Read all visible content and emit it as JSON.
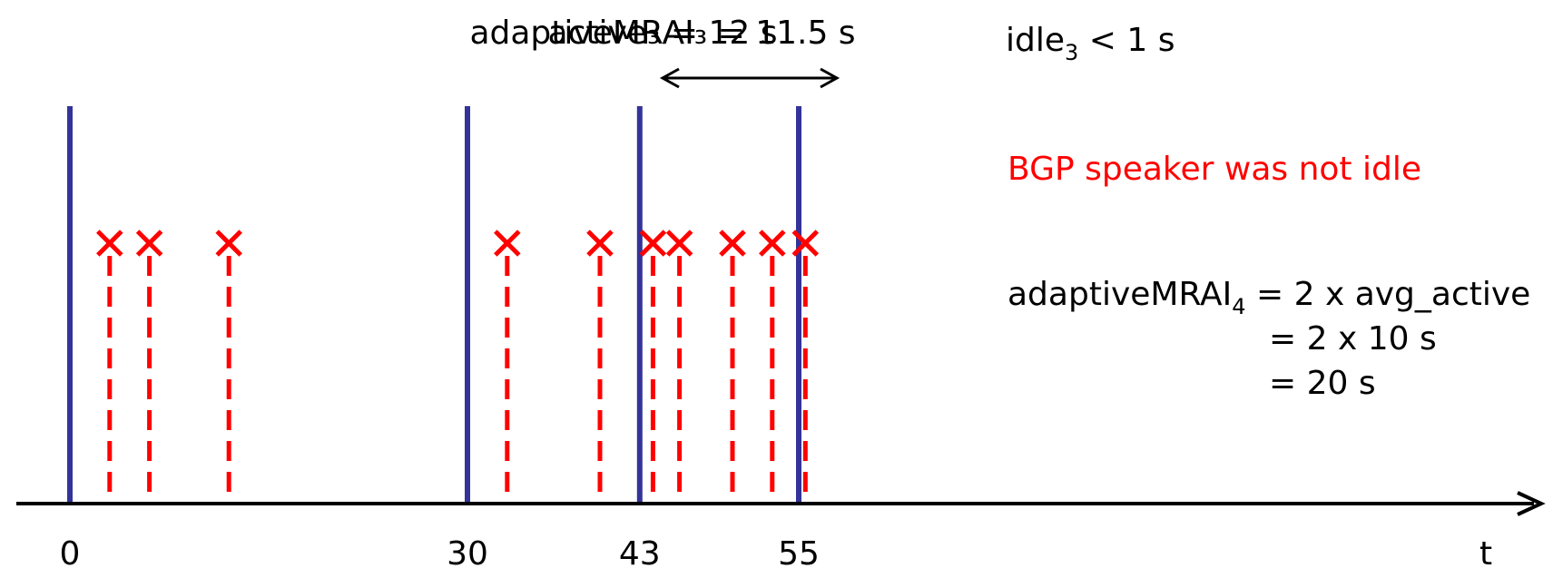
{
  "timeline": {
    "axis_label": "t",
    "ticks": [
      {
        "label": "0",
        "t": 0
      },
      {
        "label": "30",
        "t": 30
      },
      {
        "label": "43",
        "t": 43
      },
      {
        "label": "55",
        "t": 55
      }
    ],
    "timer_expiries": [
      0,
      30,
      43,
      55
    ],
    "update_events": [
      3,
      6,
      12,
      33,
      40,
      44,
      46,
      50,
      53,
      55.5
    ]
  },
  "interval": {
    "start": 43,
    "end": 55,
    "label_overlap_a": "active₃ = 12 s",
    "label_overlap_b": "adaptiveMRAI₃ = 11.5 s"
  },
  "annotations": {
    "idle_base": "idle",
    "idle_sub": "3",
    "idle_rest": " < 1 s",
    "not_idle": "BGP speaker was not idle",
    "mrai_base": "adaptiveMRAI",
    "mrai_sub": "4",
    "mrai_line1_rest": " = 2 x avg_active",
    "mrai_line2": "= 2 x 10 s",
    "mrai_line3": "= 20 s"
  },
  "colors": {
    "timer_line": "#333399",
    "event": "#ff0000",
    "axis": "#000000",
    "warning_text": "#ff0000"
  }
}
